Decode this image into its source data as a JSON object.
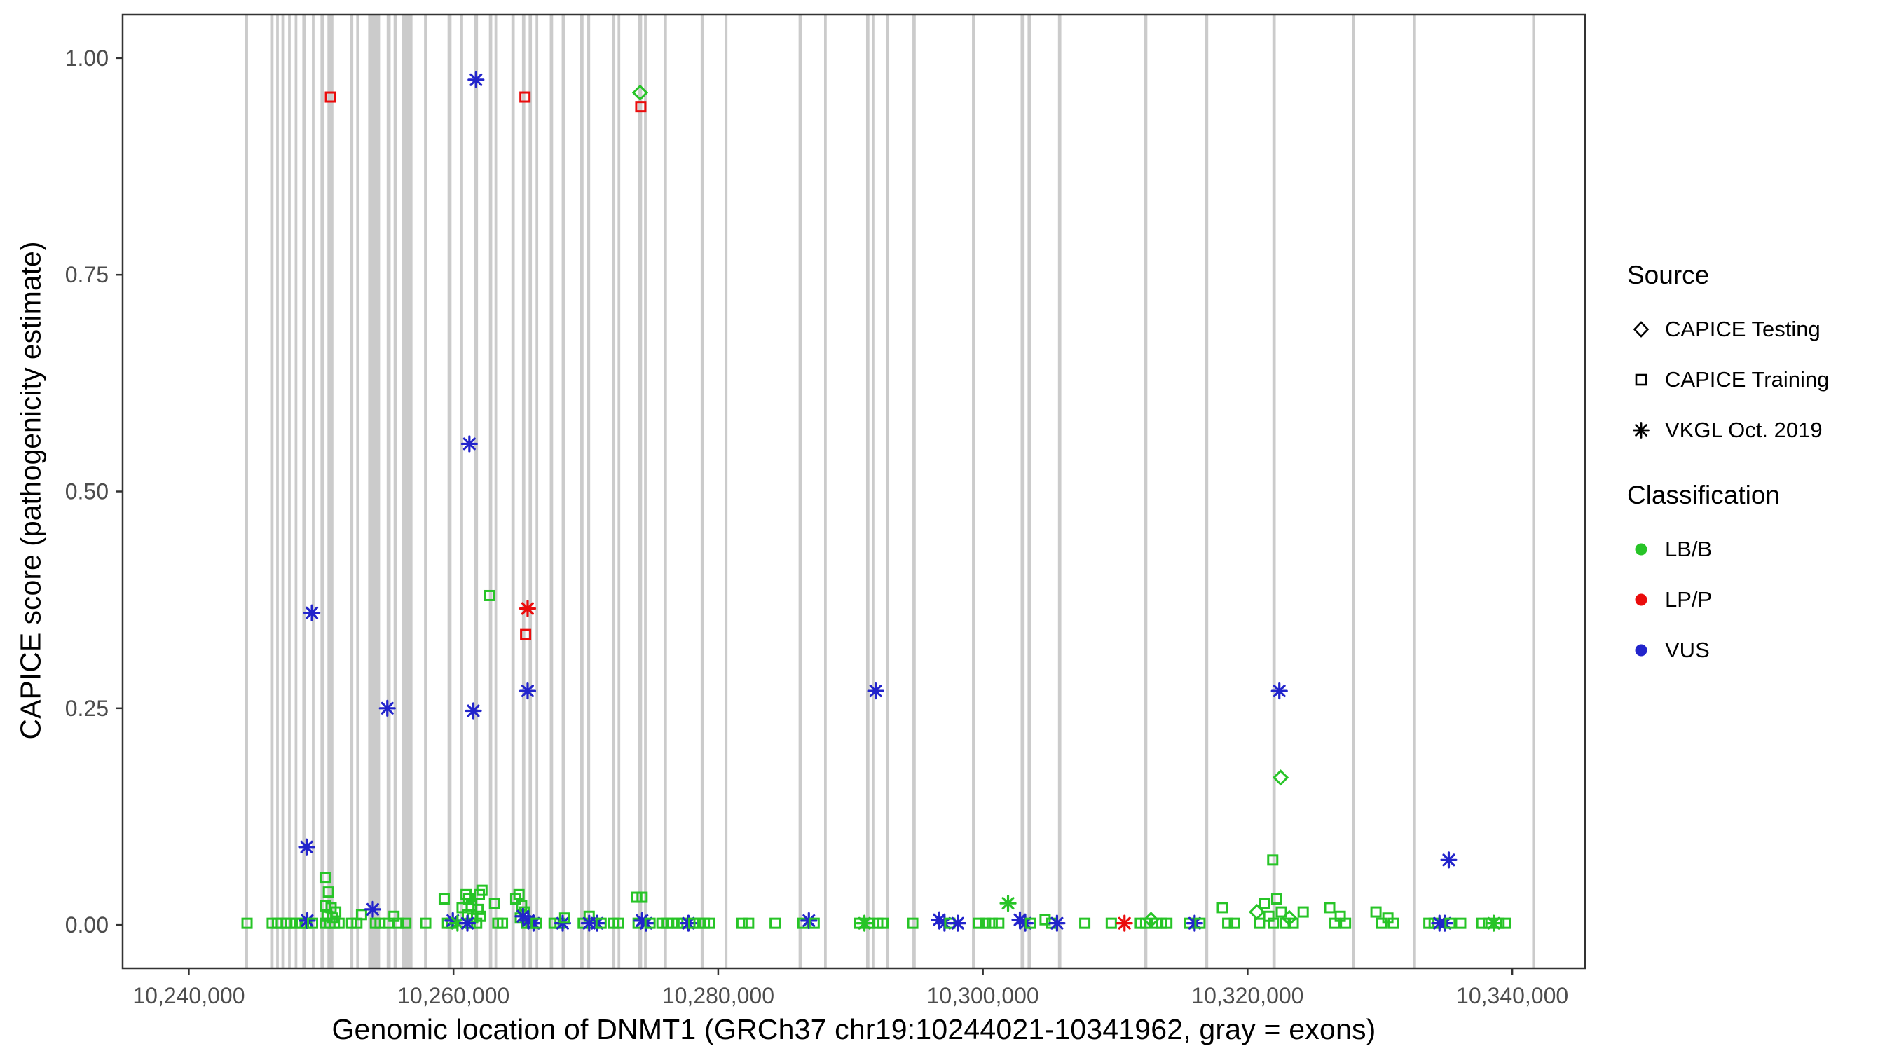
{
  "figure": {
    "x_axis_title": "Genomic location of DNMT1 (GRCh37 chr19:10244021-10341962, gray = exons)",
    "y_axis_title": "CAPICE score (pathogenicity estimate)"
  },
  "legend": {
    "source": {
      "title": "Source",
      "items": [
        {
          "label": "CAPICE Testing",
          "shape": "diamond"
        },
        {
          "label": "CAPICE Training",
          "shape": "square"
        },
        {
          "label": "VKGL Oct. 2019",
          "shape": "asterisk"
        }
      ]
    },
    "classification": {
      "title": "Classification",
      "items": [
        {
          "label": "LB/B",
          "color_key": "g"
        },
        {
          "label": "LP/P",
          "color_key": "r"
        },
        {
          "label": "VUS",
          "color_key": "b"
        }
      ]
    }
  },
  "chart_data": {
    "type": "scatter",
    "title": "",
    "xlabel": "Genomic location of DNMT1 (GRCh37 chr19:10244021-10341962, gray = exons)",
    "ylabel": "CAPICE score (pathogenicity estimate)",
    "xlim": [
      10235000,
      10345500
    ],
    "ylim": [
      -0.05,
      1.05
    ],
    "grid": false,
    "legend_position": "right",
    "xticks": [
      {
        "v": 10240000,
        "label": "10,240,000"
      },
      {
        "v": 10260000,
        "label": "10,260,000"
      },
      {
        "v": 10280000,
        "label": "10,280,000"
      },
      {
        "v": 10300000,
        "label": "10,300,000"
      },
      {
        "v": 10320000,
        "label": "10,320,000"
      },
      {
        "v": 10340000,
        "label": "10,340,000"
      }
    ],
    "yticks": [
      {
        "v": 0.0,
        "label": "0.00"
      },
      {
        "v": 0.25,
        "label": "0.25"
      },
      {
        "v": 0.5,
        "label": "0.50"
      },
      {
        "v": 0.75,
        "label": "0.75"
      },
      {
        "v": 1.0,
        "label": "1.00"
      }
    ],
    "colors": {
      "g": "#27c427",
      "r": "#ea0c0c",
      "b": "#2224cb"
    },
    "class_codes": {
      "g": "LB/B",
      "r": "LP/P",
      "b": "VUS"
    },
    "shape_codes": {
      "s": "square = CAPICE Training",
      "d": "diamond = CAPICE Testing",
      "a": "asterisk = VKGL Oct. 2019"
    },
    "exon_color": "#cbcbcb",
    "exon_format": [
      "center_position",
      "width_bp"
    ],
    "exons": [
      [
        10244350,
        250
      ],
      [
        10246300,
        200
      ],
      [
        10246700,
        200
      ],
      [
        10247100,
        200
      ],
      [
        10247600,
        200
      ],
      [
        10248100,
        200
      ],
      [
        10248700,
        250
      ],
      [
        10249400,
        200
      ],
      [
        10250100,
        300
      ],
      [
        10250700,
        450
      ],
      [
        10252300,
        250
      ],
      [
        10252750,
        200
      ],
      [
        10254000,
        900
      ],
      [
        10255100,
        300
      ],
      [
        10255600,
        250
      ],
      [
        10256500,
        800
      ],
      [
        10257900,
        250
      ],
      [
        10259700,
        300
      ],
      [
        10260600,
        250
      ],
      [
        10261700,
        300
      ],
      [
        10262800,
        250
      ],
      [
        10263200,
        200
      ],
      [
        10264500,
        250
      ],
      [
        10265300,
        250
      ],
      [
        10265800,
        250
      ],
      [
        10266300,
        200
      ],
      [
        10267400,
        250
      ],
      [
        10268300,
        250
      ],
      [
        10269700,
        250
      ],
      [
        10270200,
        250
      ],
      [
        10272100,
        250
      ],
      [
        10272500,
        200
      ],
      [
        10274100,
        300
      ],
      [
        10274500,
        200
      ],
      [
        10276000,
        250
      ],
      [
        10278800,
        250
      ],
      [
        10280600,
        200
      ],
      [
        10286200,
        250
      ],
      [
        10288100,
        200
      ],
      [
        10291300,
        250
      ],
      [
        10291700,
        200
      ],
      [
        10292800,
        250
      ],
      [
        10294800,
        250
      ],
      [
        10299300,
        250
      ],
      [
        10303000,
        300
      ],
      [
        10303500,
        250
      ],
      [
        10305800,
        250
      ],
      [
        10312300,
        250
      ],
      [
        10316900,
        250
      ],
      [
        10322000,
        250
      ],
      [
        10328000,
        250
      ],
      [
        10332600,
        250
      ],
      [
        10341600,
        200
      ]
    ],
    "point_format": [
      "x",
      "y",
      "shape",
      "classification"
    ],
    "points": [
      [
        10250700,
        0.955,
        "s",
        "r"
      ],
      [
        10261700,
        0.975,
        "a",
        "b"
      ],
      [
        10265400,
        0.955,
        "s",
        "r"
      ],
      [
        10274100,
        0.96,
        "d",
        "g"
      ],
      [
        10274150,
        0.944,
        "s",
        "r"
      ],
      [
        10261200,
        0.555,
        "a",
        "b"
      ],
      [
        10262700,
        0.38,
        "s",
        "g"
      ],
      [
        10265600,
        0.365,
        "a",
        "r"
      ],
      [
        10265450,
        0.335,
        "s",
        "r"
      ],
      [
        10249300,
        0.36,
        "a",
        "b"
      ],
      [
        10255000,
        0.25,
        "a",
        "b"
      ],
      [
        10261500,
        0.247,
        "a",
        "b"
      ],
      [
        10265600,
        0.27,
        "a",
        "b"
      ],
      [
        10291900,
        0.27,
        "a",
        "b"
      ],
      [
        10322400,
        0.27,
        "a",
        "b"
      ],
      [
        10322500,
        0.17,
        "d",
        "g"
      ],
      [
        10248900,
        0.09,
        "a",
        "b"
      ],
      [
        10321900,
        0.075,
        "s",
        "g"
      ],
      [
        10335200,
        0.075,
        "a",
        "b"
      ],
      [
        10244400,
        0.002,
        "s",
        "g"
      ],
      [
        10246300,
        0.002,
        "s",
        "g"
      ],
      [
        10246700,
        0.002,
        "s",
        "g"
      ],
      [
        10247000,
        0.002,
        "s",
        "g"
      ],
      [
        10247350,
        0.002,
        "s",
        "g"
      ],
      [
        10247700,
        0.002,
        "s",
        "g"
      ],
      [
        10248100,
        0.002,
        "s",
        "g"
      ],
      [
        10248500,
        0.002,
        "s",
        "g"
      ],
      [
        10248900,
        0.002,
        "s",
        "g"
      ],
      [
        10248950,
        0.005,
        "a",
        "b"
      ],
      [
        10249350,
        0.002,
        "s",
        "g"
      ],
      [
        10250300,
        0.055,
        "s",
        "g"
      ],
      [
        10250550,
        0.038,
        "s",
        "g"
      ],
      [
        10250350,
        0.022,
        "s",
        "g"
      ],
      [
        10250750,
        0.02,
        "s",
        "g"
      ],
      [
        10250450,
        0.01,
        "s",
        "g"
      ],
      [
        10250850,
        0.008,
        "s",
        "g"
      ],
      [
        10250300,
        0.002,
        "s",
        "g"
      ],
      [
        10250650,
        0.002,
        "s",
        "g"
      ],
      [
        10251000,
        0.002,
        "s",
        "g"
      ],
      [
        10251350,
        0.002,
        "s",
        "g"
      ],
      [
        10251100,
        0.015,
        "s",
        "g"
      ],
      [
        10252300,
        0.002,
        "s",
        "g"
      ],
      [
        10252700,
        0.002,
        "s",
        "g"
      ],
      [
        10253050,
        0.012,
        "s",
        "g"
      ],
      [
        10253900,
        0.018,
        "a",
        "b"
      ],
      [
        10254100,
        0.002,
        "s",
        "g"
      ],
      [
        10254450,
        0.002,
        "s",
        "g"
      ],
      [
        10255100,
        0.002,
        "s",
        "g"
      ],
      [
        10255500,
        0.01,
        "s",
        "g"
      ],
      [
        10255850,
        0.002,
        "s",
        "g"
      ],
      [
        10256400,
        0.002,
        "s",
        "g"
      ],
      [
        10257900,
        0.002,
        "s",
        "g"
      ],
      [
        10259300,
        0.03,
        "s",
        "g"
      ],
      [
        10259550,
        0.002,
        "s",
        "g"
      ],
      [
        10259850,
        0.002,
        "s",
        "g"
      ],
      [
        10259950,
        0.005,
        "a",
        "b"
      ],
      [
        10260300,
        0.002,
        "a",
        "g"
      ],
      [
        10260650,
        0.02,
        "s",
        "g"
      ],
      [
        10260950,
        0.035,
        "s",
        "g"
      ],
      [
        10261150,
        0.03,
        "s",
        "g"
      ],
      [
        10261350,
        0.022,
        "s",
        "g"
      ],
      [
        10261050,
        0.012,
        "s",
        "g"
      ],
      [
        10261450,
        0.008,
        "s",
        "g"
      ],
      [
        10261750,
        0.002,
        "s",
        "g"
      ],
      [
        10261250,
        0.002,
        "s",
        "g"
      ],
      [
        10261950,
        0.035,
        "s",
        "g"
      ],
      [
        10262150,
        0.04,
        "s",
        "g"
      ],
      [
        10262050,
        0.01,
        "s",
        "g"
      ],
      [
        10261850,
        0.018,
        "s",
        "g"
      ],
      [
        10261050,
        0.002,
        "a",
        "b"
      ],
      [
        10263100,
        0.025,
        "s",
        "g"
      ],
      [
        10263350,
        0.002,
        "s",
        "g"
      ],
      [
        10263700,
        0.002,
        "s",
        "g"
      ],
      [
        10264700,
        0.03,
        "s",
        "g"
      ],
      [
        10264950,
        0.035,
        "s",
        "g"
      ],
      [
        10265150,
        0.022,
        "s",
        "g"
      ],
      [
        10265350,
        0.015,
        "s",
        "g"
      ],
      [
        10265050,
        0.008,
        "s",
        "g"
      ],
      [
        10265550,
        0.002,
        "s",
        "g"
      ],
      [
        10265850,
        0.002,
        "s",
        "g"
      ],
      [
        10265250,
        0.01,
        "a",
        "b"
      ],
      [
        10265650,
        0.005,
        "a",
        "b"
      ],
      [
        10266050,
        0.002,
        "a",
        "b"
      ],
      [
        10266250,
        0.002,
        "s",
        "g"
      ],
      [
        10267600,
        0.002,
        "s",
        "g"
      ],
      [
        10268050,
        0.002,
        "s",
        "g"
      ],
      [
        10268250,
        0.002,
        "a",
        "b"
      ],
      [
        10268400,
        0.008,
        "s",
        "g"
      ],
      [
        10269800,
        0.002,
        "s",
        "g"
      ],
      [
        10270250,
        0.01,
        "s",
        "g"
      ],
      [
        10270550,
        0.002,
        "s",
        "g"
      ],
      [
        10270250,
        0.002,
        "a",
        "b"
      ],
      [
        10270850,
        0.002,
        "a",
        "b"
      ],
      [
        10271150,
        0.002,
        "s",
        "g"
      ],
      [
        10272100,
        0.002,
        "s",
        "g"
      ],
      [
        10272450,
        0.002,
        "s",
        "g"
      ],
      [
        10273850,
        0.032,
        "s",
        "g"
      ],
      [
        10274250,
        0.032,
        "s",
        "g"
      ],
      [
        10273950,
        0.002,
        "s",
        "g"
      ],
      [
        10274250,
        0.005,
        "a",
        "b"
      ],
      [
        10274550,
        0.002,
        "a",
        "b"
      ],
      [
        10274850,
        0.002,
        "s",
        "g"
      ],
      [
        10275750,
        0.002,
        "s",
        "g"
      ],
      [
        10276150,
        0.002,
        "s",
        "g"
      ],
      [
        10276550,
        0.002,
        "s",
        "g"
      ],
      [
        10276950,
        0.002,
        "s",
        "g"
      ],
      [
        10277350,
        0.002,
        "s",
        "g"
      ],
      [
        10277750,
        0.002,
        "a",
        "b"
      ],
      [
        10278150,
        0.002,
        "s",
        "g"
      ],
      [
        10278550,
        0.002,
        "s",
        "g"
      ],
      [
        10278950,
        0.002,
        "s",
        "g"
      ],
      [
        10279350,
        0.002,
        "s",
        "g"
      ],
      [
        10281800,
        0.002,
        "s",
        "g"
      ],
      [
        10282300,
        0.002,
        "s",
        "g"
      ],
      [
        10284300,
        0.002,
        "s",
        "g"
      ],
      [
        10286400,
        0.002,
        "s",
        "g"
      ],
      [
        10286850,
        0.005,
        "a",
        "b"
      ],
      [
        10287250,
        0.002,
        "s",
        "g"
      ],
      [
        10290700,
        0.002,
        "s",
        "g"
      ],
      [
        10291050,
        0.002,
        "a",
        "g"
      ],
      [
        10291450,
        0.002,
        "s",
        "g"
      ],
      [
        10292050,
        0.002,
        "s",
        "g"
      ],
      [
        10292450,
        0.002,
        "s",
        "g"
      ],
      [
        10294700,
        0.002,
        "s",
        "g"
      ],
      [
        10296700,
        0.006,
        "a",
        "b"
      ],
      [
        10297100,
        0.002,
        "a",
        "b"
      ],
      [
        10297500,
        0.002,
        "s",
        "g"
      ],
      [
        10298100,
        0.002,
        "a",
        "b"
      ],
      [
        10299700,
        0.002,
        "s",
        "g"
      ],
      [
        10300200,
        0.002,
        "s",
        "g"
      ],
      [
        10300700,
        0.002,
        "s",
        "g"
      ],
      [
        10301200,
        0.002,
        "s",
        "g"
      ],
      [
        10301900,
        0.025,
        "a",
        "g"
      ],
      [
        10302800,
        0.006,
        "a",
        "b"
      ],
      [
        10303200,
        0.002,
        "a",
        "b"
      ],
      [
        10303600,
        0.002,
        "s",
        "g"
      ],
      [
        10304700,
        0.006,
        "s",
        "g"
      ],
      [
        10305200,
        0.002,
        "s",
        "g"
      ],
      [
        10305600,
        0.002,
        "a",
        "b"
      ],
      [
        10307700,
        0.002,
        "s",
        "g"
      ],
      [
        10309700,
        0.002,
        "s",
        "g"
      ],
      [
        10310700,
        0.002,
        "a",
        "r"
      ],
      [
        10311900,
        0.002,
        "s",
        "g"
      ],
      [
        10312300,
        0.002,
        "s",
        "g"
      ],
      [
        10312700,
        0.006,
        "d",
        "g"
      ],
      [
        10313100,
        0.002,
        "s",
        "g"
      ],
      [
        10313500,
        0.002,
        "s",
        "g"
      ],
      [
        10313900,
        0.002,
        "s",
        "g"
      ],
      [
        10315600,
        0.002,
        "s",
        "g"
      ],
      [
        10316000,
        0.002,
        "a",
        "b"
      ],
      [
        10316400,
        0.002,
        "s",
        "g"
      ],
      [
        10318100,
        0.02,
        "s",
        "g"
      ],
      [
        10318500,
        0.002,
        "s",
        "g"
      ],
      [
        10319000,
        0.002,
        "s",
        "g"
      ],
      [
        10320700,
        0.015,
        "d",
        "g"
      ],
      [
        10320900,
        0.002,
        "s",
        "g"
      ],
      [
        10321300,
        0.025,
        "s",
        "g"
      ],
      [
        10321600,
        0.01,
        "s",
        "g"
      ],
      [
        10321950,
        0.002,
        "s",
        "g"
      ],
      [
        10322200,
        0.03,
        "s",
        "g"
      ],
      [
        10322550,
        0.015,
        "s",
        "g"
      ],
      [
        10322850,
        0.002,
        "s",
        "g"
      ],
      [
        10323150,
        0.008,
        "d",
        "g"
      ],
      [
        10323450,
        0.002,
        "s",
        "g"
      ],
      [
        10324200,
        0.015,
        "s",
        "g"
      ],
      [
        10326200,
        0.02,
        "s",
        "g"
      ],
      [
        10326600,
        0.002,
        "s",
        "g"
      ],
      [
        10327000,
        0.01,
        "s",
        "g"
      ],
      [
        10327400,
        0.002,
        "s",
        "g"
      ],
      [
        10329700,
        0.015,
        "s",
        "g"
      ],
      [
        10330100,
        0.002,
        "s",
        "g"
      ],
      [
        10330600,
        0.008,
        "s",
        "g"
      ],
      [
        10331000,
        0.002,
        "s",
        "g"
      ],
      [
        10333700,
        0.002,
        "s",
        "g"
      ],
      [
        10334100,
        0.002,
        "s",
        "g"
      ],
      [
        10334500,
        0.002,
        "a",
        "b"
      ],
      [
        10334900,
        0.002,
        "a",
        "b"
      ],
      [
        10335300,
        0.002,
        "s",
        "g"
      ],
      [
        10336100,
        0.002,
        "s",
        "g"
      ],
      [
        10337700,
        0.002,
        "s",
        "g"
      ],
      [
        10338200,
        0.002,
        "s",
        "g"
      ],
      [
        10338600,
        0.002,
        "a",
        "g"
      ],
      [
        10339000,
        0.002,
        "s",
        "g"
      ],
      [
        10339500,
        0.002,
        "s",
        "g"
      ]
    ]
  }
}
